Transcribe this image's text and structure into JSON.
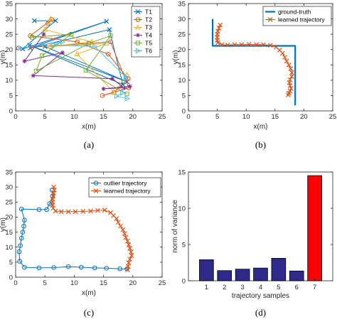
{
  "colors": {
    "blue": "#0072BD",
    "orange": "#D95319",
    "yellow": "#EDB120",
    "purple": "#7E2F8E",
    "green": "#77AC30",
    "cyan": "#4DBEEE",
    "bar_blue": "#2e2a8c",
    "bar_red": "#ff0000"
  },
  "chart_data": [
    {
      "id": "a",
      "type": "line",
      "caption": "(a)",
      "xlabel": "x(m)",
      "ylabel": "y(m)",
      "xlim": [
        0,
        25
      ],
      "ylim": [
        0,
        35
      ],
      "xticks": [
        "0",
        "5",
        "10",
        "15",
        "20",
        "25"
      ],
      "yticks": [
        "0",
        "5",
        "10",
        "15",
        "20",
        "25",
        "30",
        "35"
      ],
      "legend_position": "top-right",
      "series": [
        {
          "name": "T1",
          "marker": "x",
          "color": "#0072BD",
          "points": [
            [
              3.2,
              29.4
            ],
            [
              6.8,
              29.4
            ],
            [
              1.2,
              20.2
            ],
            [
              15.5,
              29.2
            ],
            [
              2.5,
              20.5
            ],
            [
              16.0,
              26.5
            ],
            [
              18.3,
              8.6
            ],
            [
              2.4,
              21.4
            ],
            [
              19.0,
              9.5
            ],
            [
              5.0,
              21.0
            ]
          ]
        },
        {
          "name": "T2",
          "marker": "o",
          "color": "#D95319",
          "points": [
            [
              5.5,
              28.5
            ],
            [
              6.2,
              29.8
            ],
            [
              2.5,
              24.5
            ],
            [
              10.5,
              22.5
            ],
            [
              15.8,
              18.5
            ],
            [
              19.2,
              10.5
            ],
            [
              16.8,
              6.0
            ],
            [
              14.8,
              5.0
            ],
            [
              19.3,
              7.5
            ],
            [
              16.2,
              22.5
            ],
            [
              0.5,
              20.5
            ]
          ]
        },
        {
          "name": "T3",
          "marker": "^",
          "color": "#EDB120",
          "points": [
            [
              6.0,
              30.0
            ],
            [
              5.0,
              26.5
            ],
            [
              13.0,
              22.5
            ],
            [
              6.0,
              21.0
            ],
            [
              15.5,
              22.0
            ],
            [
              10.5,
              18.5
            ],
            [
              16.8,
              6.0
            ],
            [
              19.0,
              11.8
            ]
          ]
        },
        {
          "name": "T4",
          "marker": "*",
          "color": "#7E2F8E",
          "points": [
            [
              4.8,
              25.0
            ],
            [
              1.5,
              16.2
            ],
            [
              8.0,
              19.0
            ],
            [
              3.0,
              11.5
            ],
            [
              16.5,
              10.5
            ],
            [
              18.5,
              7.5
            ],
            [
              15.0,
              7.2
            ],
            [
              19.5,
              8.0
            ]
          ]
        },
        {
          "name": "T5",
          "marker": "s",
          "color": "#77AC30",
          "points": [
            [
              2.8,
              24.0
            ],
            [
              9.5,
              25.0
            ],
            [
              4.5,
              18.0
            ],
            [
              3.5,
              13.0
            ],
            [
              12.5,
              22.0
            ],
            [
              16.2,
              24.5
            ],
            [
              12.0,
              13.2
            ],
            [
              19.0,
              5.5
            ]
          ]
        },
        {
          "name": "T6",
          "marker": ">",
          "color": "#4DBEEE",
          "points": [
            [
              0.8,
              20.5
            ],
            [
              8.0,
              22.5
            ],
            [
              6.5,
              21.5
            ],
            [
              13.5,
              21.0
            ],
            [
              18.8,
              11.0
            ],
            [
              18.2,
              5.8
            ],
            [
              17.2,
              4.8
            ],
            [
              19.0,
              4.0
            ]
          ]
        }
      ]
    },
    {
      "id": "b",
      "type": "line",
      "caption": "(b)",
      "xlabel": "x(m)",
      "ylabel": "y(m)",
      "xlim": [
        0,
        25
      ],
      "ylim": [
        0,
        35
      ],
      "xticks": [
        "0",
        "5",
        "10",
        "15",
        "20",
        "25"
      ],
      "yticks": [
        "0",
        "5",
        "10",
        "15",
        "20",
        "25",
        "30",
        "35"
      ],
      "legend_position": "top-right",
      "series": [
        {
          "name": "ground-truth",
          "marker": "none",
          "color": "#0072BD",
          "line_width": 2.2,
          "points": [
            [
              4.2,
              30.0
            ],
            [
              4.2,
              21.2
            ],
            [
              18.5,
              21.2
            ],
            [
              18.5,
              1.8
            ]
          ]
        },
        {
          "name": "learned trajectory",
          "marker": "x",
          "color": "#D95319",
          "points": [
            [
              5.5,
              28.0
            ],
            [
              5.3,
              27.0
            ],
            [
              5.1,
              26.0
            ],
            [
              5.0,
              25.0
            ],
            [
              5.0,
              24.0
            ],
            [
              5.0,
              23.0
            ],
            [
              5.1,
              22.2
            ],
            [
              5.8,
              21.6
            ],
            [
              6.8,
              21.5
            ],
            [
              8.0,
              21.6
            ],
            [
              9.2,
              21.6
            ],
            [
              10.5,
              21.7
            ],
            [
              11.8,
              21.6
            ],
            [
              13.0,
              21.6
            ],
            [
              14.2,
              21.4
            ],
            [
              15.2,
              20.8
            ],
            [
              15.8,
              19.8
            ],
            [
              16.3,
              18.8
            ],
            [
              16.7,
              17.5
            ],
            [
              17.0,
              16.2
            ],
            [
              17.4,
              15.0
            ],
            [
              17.7,
              13.8
            ],
            [
              17.9,
              12.5
            ],
            [
              17.9,
              11.2
            ],
            [
              17.6,
              10.2
            ],
            [
              17.5,
              9.2
            ],
            [
              17.6,
              8.2
            ],
            [
              17.8,
              7.3
            ],
            [
              17.6,
              6.5
            ],
            [
              17.4,
              5.8
            ],
            [
              17.3,
              5.2
            ]
          ]
        }
      ]
    },
    {
      "id": "c",
      "type": "line",
      "caption": "(c)",
      "xlabel": "x(m)",
      "ylabel": "y(m)",
      "xlim": [
        0,
        25
      ],
      "ylim": [
        0,
        35
      ],
      "xticks": [
        "0",
        "5",
        "10",
        "15",
        "20",
        "25"
      ],
      "yticks": [
        "0",
        "5",
        "10",
        "15",
        "20",
        "25",
        "30",
        "35"
      ],
      "legend_position": "top-right",
      "series": [
        {
          "name": "outlier trajectory",
          "marker": "o",
          "color": "#0072BD",
          "points": [
            [
              6.2,
              29.0
            ],
            [
              6.3,
              27.0
            ],
            [
              5.8,
              24.5
            ],
            [
              5.3,
              22.5
            ],
            [
              4.0,
              22.5
            ],
            [
              1.0,
              22.7
            ],
            [
              1.5,
              19.0
            ],
            [
              1.4,
              17.0
            ],
            [
              1.2,
              15.0
            ],
            [
              1.0,
              13.0
            ],
            [
              0.8,
              10.5
            ],
            [
              0.6,
              8.5
            ],
            [
              0.7,
              5.3
            ],
            [
              1.5,
              3.3
            ],
            [
              4.0,
              3.1
            ],
            [
              6.5,
              3.2
            ],
            [
              9.0,
              3.5
            ],
            [
              11.2,
              3.3
            ],
            [
              13.5,
              3.1
            ],
            [
              15.5,
              3.0
            ],
            [
              17.8,
              2.8
            ],
            [
              19.0,
              2.8
            ]
          ]
        },
        {
          "name": "learned trajectory",
          "marker": "x",
          "color": "#D95319",
          "points": [
            [
              6.5,
              30.0
            ],
            [
              6.6,
              29.0
            ],
            [
              6.5,
              28.0
            ],
            [
              6.4,
              27.0
            ],
            [
              6.3,
              26.0
            ],
            [
              6.3,
              25.0
            ],
            [
              6.3,
              24.0
            ],
            [
              6.4,
              23.0
            ],
            [
              6.8,
              22.0
            ],
            [
              7.8,
              21.8
            ],
            [
              9.0,
              21.8
            ],
            [
              10.2,
              21.8
            ],
            [
              11.5,
              21.9
            ],
            [
              12.8,
              22.0
            ],
            [
              14.0,
              22.2
            ],
            [
              15.2,
              22.3
            ],
            [
              16.2,
              21.5
            ],
            [
              16.7,
              20.5
            ],
            [
              17.2,
              19.5
            ],
            [
              17.5,
              18.3
            ],
            [
              17.9,
              17.0
            ],
            [
              18.3,
              15.8
            ],
            [
              18.6,
              14.5
            ],
            [
              18.8,
              13.2
            ],
            [
              19.1,
              12.0
            ],
            [
              19.3,
              10.8
            ],
            [
              19.5,
              9.6
            ],
            [
              19.7,
              8.4
            ],
            [
              19.8,
              7.2
            ],
            [
              19.5,
              6.0
            ],
            [
              19.3,
              4.8
            ],
            [
              19.2,
              3.6
            ],
            [
              19.1,
              2.5
            ]
          ]
        }
      ]
    },
    {
      "id": "d",
      "type": "bar",
      "caption": "(d)",
      "xlabel": "trajectory samples",
      "ylabel": "norm of variance",
      "ylim": [
        0,
        15
      ],
      "yticks": [
        "0",
        "5",
        "10",
        "15"
      ],
      "categories": [
        "1",
        "2",
        "3",
        "4",
        "5",
        "6",
        "7"
      ],
      "values": [
        2.9,
        1.4,
        1.6,
        1.75,
        3.1,
        1.35,
        14.5
      ],
      "bar_colors": [
        "#2e2a8c",
        "#2e2a8c",
        "#2e2a8c",
        "#2e2a8c",
        "#2e2a8c",
        "#2e2a8c",
        "#ff0000"
      ]
    }
  ]
}
